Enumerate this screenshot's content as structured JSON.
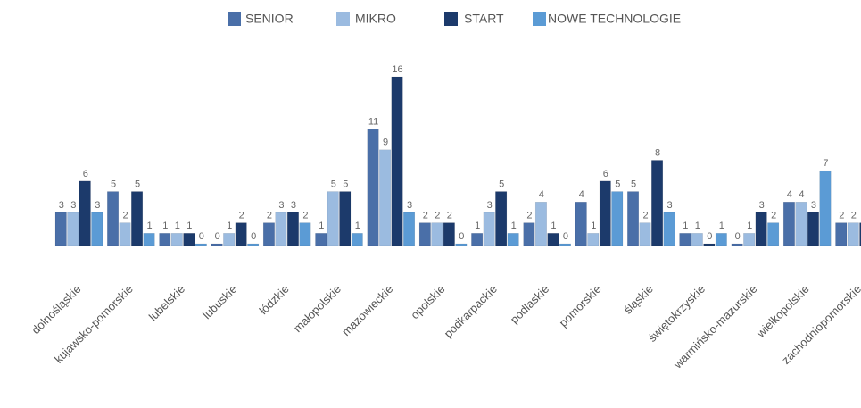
{
  "chart_data": {
    "type": "bar",
    "categories": [
      "dolnośląskie",
      "kujawsko-pomorskie",
      "lubelskie",
      "lubuskie",
      "łódzkie",
      "małopolskie",
      "mazowieckie",
      "opolskie",
      "podkarpackie",
      "podlaskie",
      "pomorskie",
      "śląskie",
      "świętokrzyskie",
      "warmińsko-mazurskie",
      "wielkopolskie",
      "zachodniopomorskie"
    ],
    "series": [
      {
        "name": "SENIOR",
        "color": "#4a6fa8",
        "values": [
          3,
          5,
          1,
          0,
          2,
          1,
          11,
          2,
          1,
          2,
          4,
          5,
          1,
          0,
          4,
          2
        ]
      },
      {
        "name": "MIKRO",
        "color": "#9bbbe0",
        "values": [
          3,
          2,
          1,
          1,
          3,
          5,
          9,
          2,
          3,
          4,
          1,
          2,
          1,
          1,
          4,
          2
        ]
      },
      {
        "name": "START",
        "color": "#1c3a6b",
        "values": [
          6,
          5,
          1,
          2,
          3,
          5,
          16,
          2,
          5,
          1,
          6,
          8,
          0,
          3,
          3,
          2
        ]
      },
      {
        "name": "NOWE TECHNOLOGIE",
        "color": "#5b9bd5",
        "values": [
          3,
          1,
          0,
          0,
          2,
          1,
          3,
          0,
          1,
          0,
          5,
          3,
          1,
          2,
          7,
          null
        ]
      }
    ]
  }
}
